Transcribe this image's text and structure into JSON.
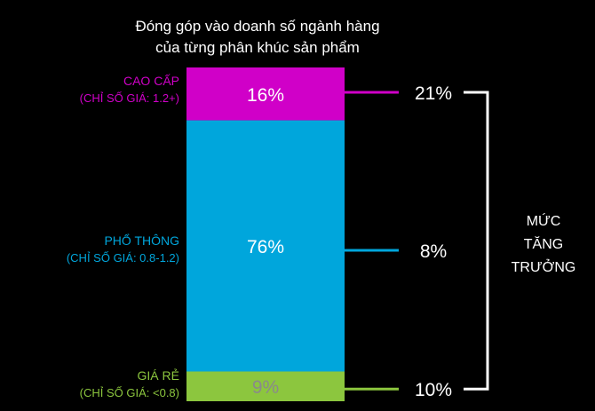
{
  "chart": {
    "title_line1": "Đóng góp vào doanh số ngành hàng",
    "title_line2": "của từng phân khúc sản phẩm",
    "bracket_label_lines": [
      "MỨC",
      "TĂNG",
      "TRƯỞNG"
    ]
  },
  "chart_data": {
    "type": "bar",
    "stacked": true,
    "title": "Đóng góp vào doanh số ngành hàng của từng phân khúc sản phẩm",
    "categories": [
      "CAO CẤP",
      "PHỔ THÔNG",
      "GIÁ RẺ"
    ],
    "segments": [
      {
        "name": "CAO CẤP",
        "sublabel": "(CHỈ SỐ GIÁ: 1.2+)",
        "value": 16,
        "value_label": "16%",
        "growth": 21,
        "growth_label": "21%",
        "color": "#d000c8",
        "value_text_color": "#ffffff"
      },
      {
        "name": "PHỔ THÔNG",
        "sublabel": "(CHỈ SỐ GIÁ: 0.8-1.2)",
        "value": 76,
        "value_label": "76%",
        "growth": 8,
        "growth_label": "8%",
        "color": "#00a6dc",
        "value_text_color": "#ffffff"
      },
      {
        "name": "GIÁ RẺ",
        "sublabel": "(CHỈ SỐ GIÁ: <0.8)",
        "value": 9,
        "value_label": "9%",
        "growth": 10,
        "growth_label": "10%",
        "color": "#8cc63e",
        "value_text_color": "#8a8a8a"
      }
    ],
    "growth_series_name": "MỨC TĂNG TRƯỞNG",
    "label_color_low": "#8cc63e",
    "colors": {
      "background": "#000000",
      "text": "#ffffff",
      "bracket": "#ffffff"
    }
  }
}
